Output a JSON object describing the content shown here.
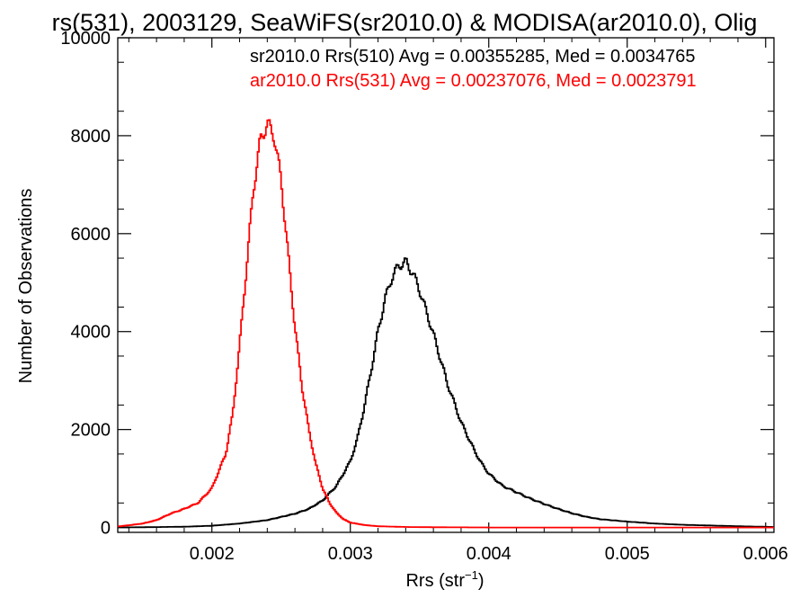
{
  "chart_data": {
    "type": "line",
    "title": "rs(531), 2003129, SeaWiFS(sr2010.0) & MODISA(ar2010.0), Olig",
    "xlabel": "Rrs (str",
    "xlabel_sup": "−1",
    "xlabel_close": ")",
    "ylabel": "Number of Observations",
    "xlim": [
      0.00132,
      0.00606
    ],
    "ylim": [
      -100,
      10000
    ],
    "xticks": [
      0.002,
      0.003,
      0.004,
      0.005,
      0.006
    ],
    "xtick_labels": [
      "0.002",
      "0.003",
      "0.004",
      "0.005",
      "0.006"
    ],
    "yticks": [
      0,
      2000,
      4000,
      6000,
      8000,
      10000
    ],
    "ytick_labels": [
      "0",
      "2000",
      "4000",
      "6000",
      "8000",
      "10000"
    ],
    "grid": false,
    "annotations": [
      {
        "text": "sr2010.0 Rrs(510) Avg = 0.00355285, Med = 0.0034765",
        "color": "#000000"
      },
      {
        "text": "ar2010.0 Rrs(531) Avg = 0.00237076, Med = 0.0023791",
        "color": "#ff0000"
      }
    ],
    "series": [
      {
        "color": "#000000",
        "x": [
          0.00132,
          0.0015,
          0.0018,
          0.002,
          0.0022,
          0.0024,
          0.0026,
          0.0027,
          0.0028,
          0.0029,
          0.003,
          0.00305,
          0.0031,
          0.00315,
          0.0032,
          0.00325,
          0.0033,
          0.00335,
          0.0034,
          0.00345,
          0.0035,
          0.00355,
          0.0036,
          0.00365,
          0.0037,
          0.00375,
          0.0038,
          0.00385,
          0.0039,
          0.00395,
          0.004,
          0.0041,
          0.0042,
          0.0043,
          0.0044,
          0.0045,
          0.0046,
          0.0047,
          0.0048,
          0.005,
          0.0052,
          0.0054,
          0.0056,
          0.0058,
          0.00606
        ],
        "y": [
          0,
          5,
          15,
          35,
          80,
          150,
          280,
          380,
          550,
          850,
          1350,
          1800,
          2450,
          3200,
          4000,
          4650,
          5100,
          5350,
          5420,
          5200,
          4850,
          4400,
          3950,
          3450,
          2950,
          2550,
          2150,
          1850,
          1550,
          1300,
          1100,
          850,
          720,
          590,
          480,
          380,
          290,
          220,
          170,
          120,
          80,
          55,
          40,
          25,
          10
        ]
      },
      {
        "color": "#ff0000",
        "x": [
          0.00132,
          0.0014,
          0.0015,
          0.0016,
          0.0017,
          0.0018,
          0.0019,
          0.002,
          0.0021,
          0.00215,
          0.0022,
          0.00225,
          0.0023,
          0.00235,
          0.0024,
          0.00245,
          0.0025,
          0.00255,
          0.0026,
          0.00265,
          0.0027,
          0.00275,
          0.0028,
          0.00285,
          0.0029,
          0.00295,
          0.003,
          0.0031,
          0.0032,
          0.0034,
          0.0036,
          0.004,
          0.0045,
          0.005,
          0.0055,
          0.00606
        ],
        "y": [
          20,
          45,
          80,
          150,
          280,
          380,
          500,
          800,
          1500,
          2300,
          3700,
          5300,
          6900,
          7900,
          8250,
          8000,
          7100,
          5600,
          4100,
          2900,
          2000,
          1300,
          800,
          500,
          300,
          170,
          100,
          50,
          25,
          10,
          5,
          0,
          0,
          0,
          0,
          0
        ]
      }
    ]
  }
}
